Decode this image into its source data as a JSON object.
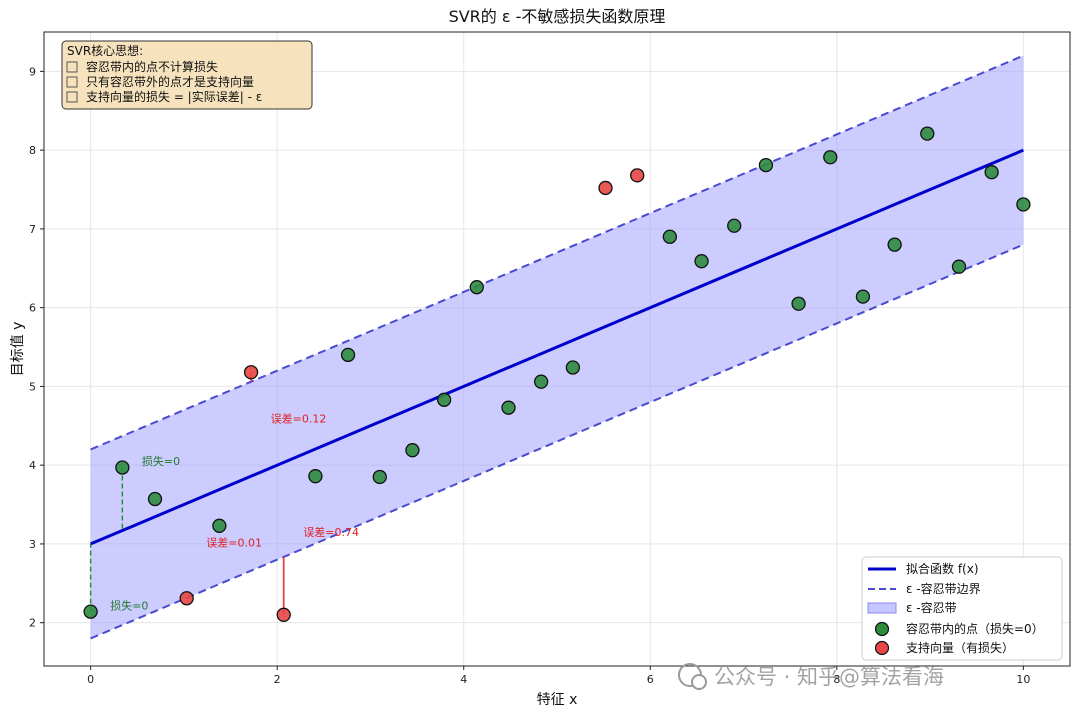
{
  "chart_data": {
    "type": "scatter",
    "title": "SVR的 ε -不敏感损失函数原理",
    "xlabel": "特征 x",
    "ylabel": "目标值 y",
    "xlim": [
      -0.5,
      10.5
    ],
    "ylim": [
      1.45,
      9.5
    ],
    "x_ticks": [
      0,
      2,
      4,
      6,
      8,
      10
    ],
    "y_ticks": [
      2,
      3,
      4,
      5,
      6,
      7,
      8,
      9
    ],
    "grid": true,
    "fit_line": {
      "name": "拟合函数 f(x)",
      "intercept": 3.0,
      "slope": 0.5,
      "color": "#0000cc"
    },
    "epsilon": 1.2,
    "band_boundary_name": "ε -容忍带边界",
    "band_name": "ε -容忍带",
    "series": [
      {
        "name": "容忍带内的点（损失=0）",
        "color": "#2e8b3e",
        "points": [
          [
            0.0,
            2.14
          ],
          [
            0.34,
            3.97
          ],
          [
            0.69,
            3.57
          ],
          [
            1.38,
            3.23
          ],
          [
            2.41,
            3.86
          ],
          [
            2.76,
            5.4
          ],
          [
            3.1,
            3.85
          ],
          [
            3.45,
            4.19
          ],
          [
            3.79,
            4.83
          ],
          [
            4.14,
            6.26
          ],
          [
            4.48,
            4.73
          ],
          [
            4.83,
            5.06
          ],
          [
            5.17,
            5.24
          ],
          [
            6.21,
            6.9
          ],
          [
            6.55,
            6.59
          ],
          [
            6.9,
            7.04
          ],
          [
            7.24,
            7.81
          ],
          [
            7.59,
            6.05
          ],
          [
            7.93,
            7.91
          ],
          [
            8.28,
            6.14
          ],
          [
            8.62,
            6.8
          ],
          [
            8.97,
            8.21
          ],
          [
            9.31,
            6.52
          ],
          [
            9.66,
            7.72
          ],
          [
            10.0,
            7.31
          ]
        ]
      },
      {
        "name": "支持向量（有损失）",
        "color": "#e84545",
        "points": [
          [
            1.03,
            2.31
          ],
          [
            1.72,
            5.18
          ],
          [
            2.07,
            2.1
          ],
          [
            5.52,
            7.52
          ],
          [
            5.86,
            7.68
          ]
        ]
      }
    ],
    "error_annotations": [
      {
        "x": 1.03,
        "y": 2.31,
        "label": "误差=0.01",
        "lx": 1.24,
        "ly": 2.97
      },
      {
        "x": 1.72,
        "y": 5.18,
        "label": "误差=0.12",
        "lx": 1.93,
        "ly": 4.54
      },
      {
        "x": 2.07,
        "y": 2.1,
        "label": "误差=0.74",
        "lx": 2.28,
        "ly": 3.1
      }
    ],
    "zero_loss_annotations": [
      {
        "x": 0.0,
        "y": 2.14,
        "label": "损失=0",
        "lx": 0.21,
        "ly": 2.17
      },
      {
        "x": 0.34,
        "y": 3.97,
        "label": "损失=0",
        "lx": 0.55,
        "ly": 4.0
      }
    ],
    "note_box": {
      "title": "SVR核心思想:",
      "lines": [
        "容忍带内的点不计算损失",
        "只有容忍带外的点才是支持向量",
        "支持向量的损失 = |实际误差| - ε"
      ]
    },
    "legend_position": "lower-right"
  },
  "watermark": "公众号 · 知乎@算法看海"
}
